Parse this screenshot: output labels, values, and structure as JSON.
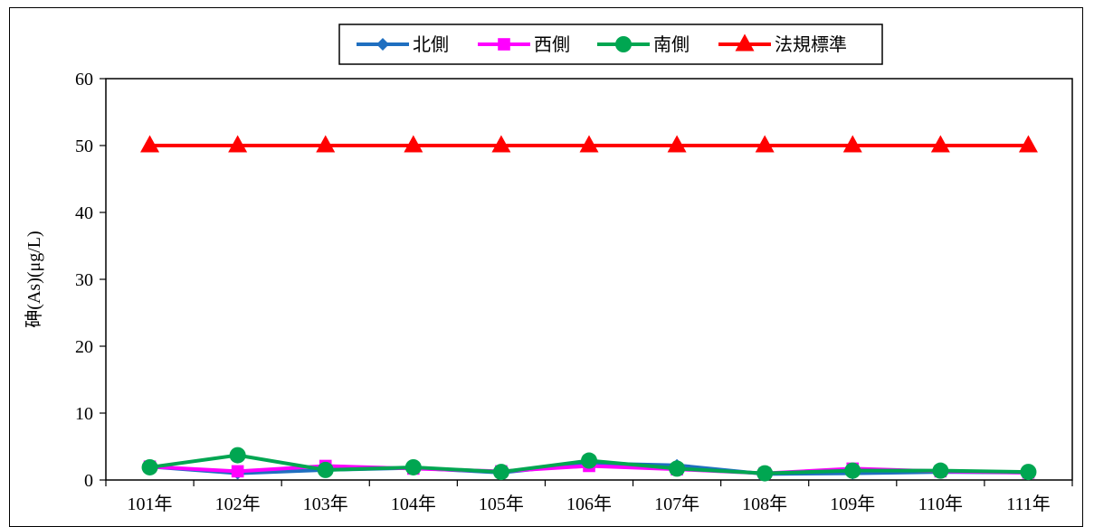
{
  "chart_data": {
    "type": "line",
    "title": "",
    "xlabel": "",
    "ylabel": "砷(As)(μg/L)",
    "ylim": [
      0,
      60
    ],
    "yticks": [
      0,
      10,
      20,
      30,
      40,
      50,
      60
    ],
    "grid": false,
    "legend_position": "top-center",
    "categories": [
      "101年",
      "102年",
      "103年",
      "104年",
      "105年",
      "106年",
      "107年",
      "108年",
      "109年",
      "110年",
      "111年"
    ],
    "series": [
      {
        "name": "北側",
        "color": "#1F6FC0",
        "marker": "diamond",
        "values": [
          2.0,
          1.0,
          1.5,
          1.8,
          1.1,
          2.5,
          2.2,
          0.9,
          1.0,
          1.2,
          1.1
        ]
      },
      {
        "name": "西側",
        "color": "#FF00FF",
        "marker": "square",
        "values": [
          2.0,
          1.3,
          2.1,
          1.7,
          1.3,
          2.1,
          1.6,
          1.0,
          1.7,
          1.3,
          1.1
        ]
      },
      {
        "name": "南側",
        "color": "#00A651",
        "marker": "circle",
        "values": [
          1.9,
          3.7,
          1.5,
          1.9,
          1.2,
          2.9,
          1.7,
          1.0,
          1.4,
          1.4,
          1.2
        ]
      },
      {
        "name": "法規標準",
        "color": "#FF0000",
        "marker": "triangle",
        "values": [
          50,
          50,
          50,
          50,
          50,
          50,
          50,
          50,
          50,
          50,
          50
        ]
      }
    ]
  }
}
